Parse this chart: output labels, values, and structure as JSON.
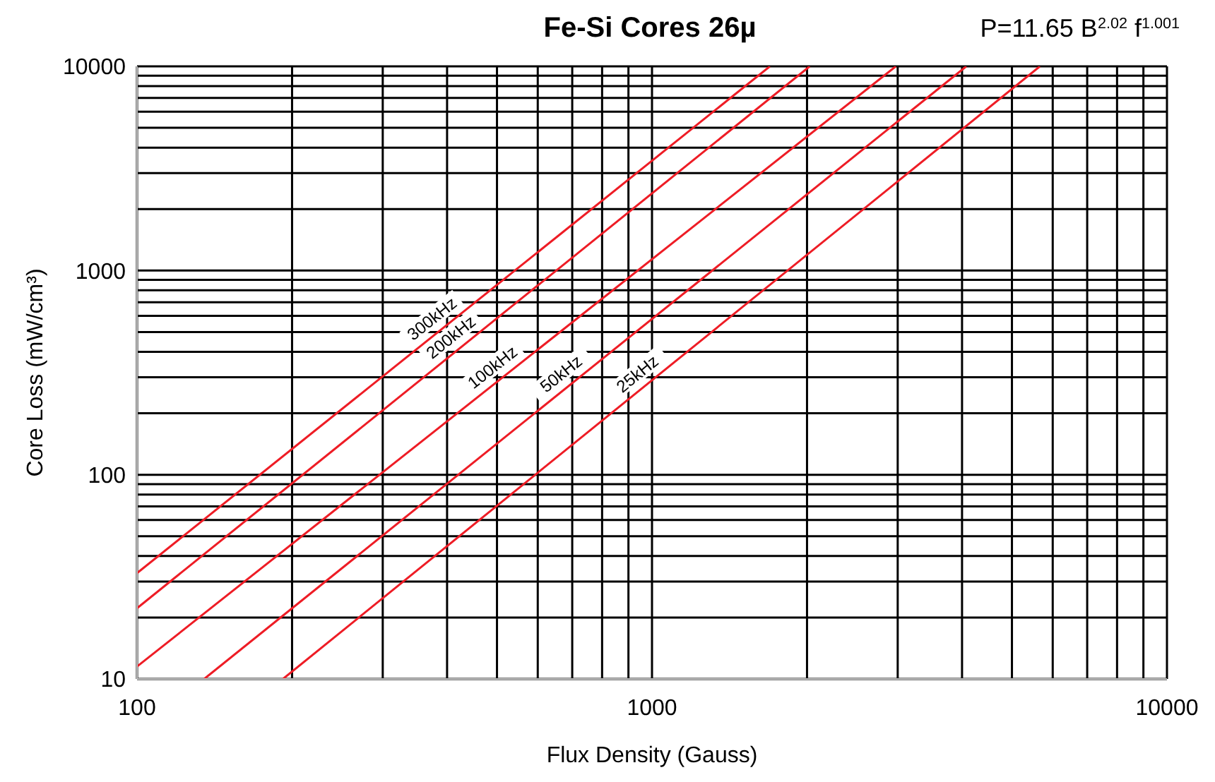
{
  "chart_data": {
    "type": "line",
    "title": "Fe-Si Cores 26µ",
    "annotations": [
      "P=11.65 B$^{2.02}$ f$^{1.001}$"
    ],
    "xlabel": "Flux Density (Gauss)",
    "ylabel": "Core Loss (mW/cm³)",
    "log": "xy",
    "grid": true,
    "marker": "none",
    "line_style": "solid",
    "xlim": [
      100,
      10000
    ],
    "ylim": [
      10,
      10000
    ],
    "xticks": [
      100,
      {
        "value": 200,
        "label": null
      },
      {
        "value": 300,
        "label": null
      },
      {
        "value": 400,
        "label": null
      },
      {
        "value": 500,
        "label": null
      },
      {
        "value": 600,
        "label": null
      },
      {
        "value": 700,
        "label": null
      },
      {
        "value": 800,
        "label": null
      },
      {
        "value": 900,
        "label": null
      },
      1000,
      {
        "value": 2000,
        "label": null
      },
      {
        "value": 3000,
        "label": null
      },
      {
        "value": 4000,
        "label": null
      },
      {
        "value": 5000,
        "label": null
      },
      {
        "value": 6000,
        "label": null
      },
      {
        "value": 7000,
        "label": null
      },
      {
        "value": 8000,
        "label": null
      },
      {
        "value": 9000,
        "label": null
      },
      10000
    ],
    "yticks": [
      10,
      {
        "value": 20,
        "label": null
      },
      {
        "value": 30,
        "label": null
      },
      {
        "value": 40,
        "label": null
      },
      {
        "value": 50,
        "label": null
      },
      {
        "value": 60,
        "label": null
      },
      {
        "value": 70,
        "label": null
      },
      {
        "value": 80,
        "label": null
      },
      {
        "value": 90,
        "label": null
      },
      100,
      {
        "value": 200,
        "label": null
      },
      {
        "value": 300,
        "label": null
      },
      {
        "value": 400,
        "label": null
      },
      {
        "value": 500,
        "label": null
      },
      {
        "value": 600,
        "label": null
      },
      {
        "value": 700,
        "label": null
      },
      {
        "value": 800,
        "label": null
      },
      {
        "value": 900,
        "label": null
      },
      1000,
      {
        "value": 2000,
        "label": null
      },
      {
        "value": 3000,
        "label": null
      },
      {
        "value": 4000,
        "label": null
      },
      {
        "value": 5000,
        "label": null
      },
      {
        "value": 6000,
        "label": null
      },
      {
        "value": 7000,
        "label": null
      },
      {
        "value": 8000,
        "label": null
      },
      {
        "value": 9000,
        "label": null
      },
      10000
    ],
    "series": [
      {
        "name": "300kHz",
        "color": "#ee1c25",
        "x": [
          100,
          1694
        ],
        "values": [
          33,
          10000
        ]
      },
      {
        "name": "200kHz",
        "color": "#ee1c25",
        "x": [
          100,
          2024
        ],
        "values": [
          22.2,
          10000
        ]
      },
      {
        "name": "100kHz",
        "color": "#ee1c25",
        "x": [
          100,
          2975
        ],
        "values": [
          11.5,
          10000
        ]
      },
      {
        "name": "50kHz",
        "color": "#ee1c25",
        "x": [
          135,
          4077
        ],
        "values": [
          10,
          10000
        ]
      },
      {
        "name": "25kHz",
        "color": "#ee1c25",
        "x": [
          192,
          5665
        ],
        "values": [
          10,
          10000
        ]
      }
    ]
  }
}
